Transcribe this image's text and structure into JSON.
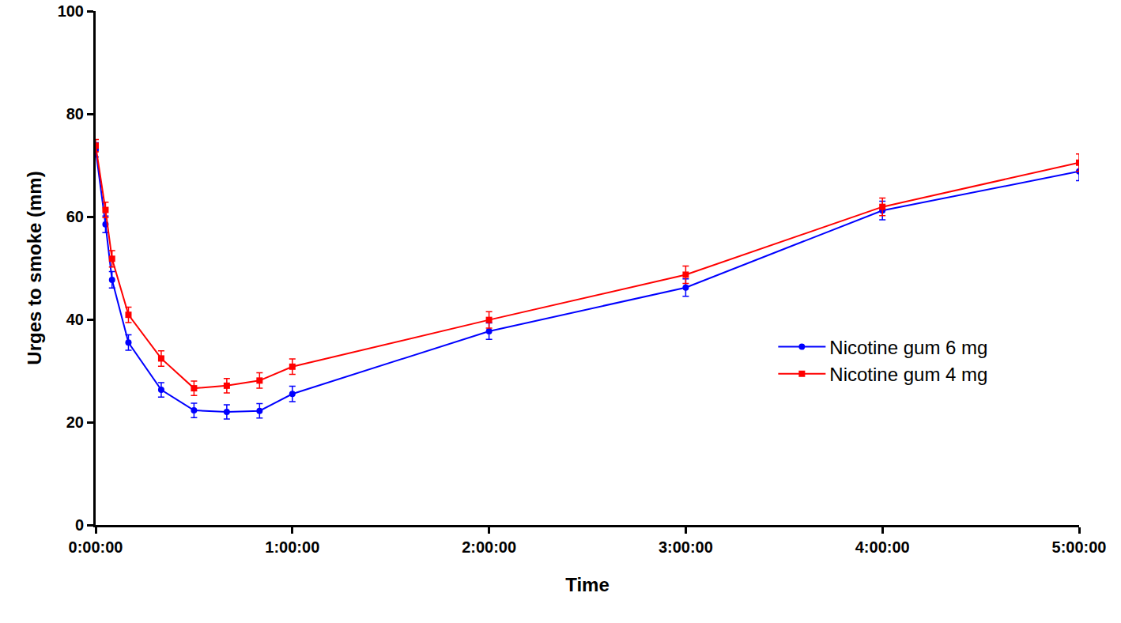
{
  "chart_data": {
    "type": "line",
    "x_label": "Time",
    "y_label": "Urges to smoke (mm)",
    "x": [
      0,
      3,
      5,
      10,
      20,
      30,
      40,
      50,
      60,
      120,
      180,
      240,
      300
    ],
    "series": [
      {
        "name": "Nicotine gum 6 mg",
        "color": "#0000ff",
        "marker": "circle",
        "values": [
          73.0,
          58.5,
          47.7,
          35.5,
          26.3,
          22.3,
          22.0,
          22.2,
          25.5,
          37.7,
          46.2,
          61.2,
          68.8
        ],
        "errors": [
          1.4,
          1.6,
          1.6,
          1.5,
          1.4,
          1.4,
          1.4,
          1.4,
          1.5,
          1.6,
          1.7,
          1.8,
          1.8
        ]
      },
      {
        "name": "Nicotine gum 4 mg",
        "color": "#ff0000",
        "marker": "square",
        "values": [
          73.8,
          61.3,
          51.8,
          40.9,
          32.4,
          26.6,
          27.1,
          28.1,
          30.8,
          39.9,
          48.7,
          61.9,
          70.5
        ],
        "errors": [
          1.2,
          1.5,
          1.6,
          1.5,
          1.5,
          1.4,
          1.4,
          1.5,
          1.5,
          1.6,
          1.7,
          1.7,
          1.7
        ]
      }
    ],
    "xlim": [
      0,
      300
    ],
    "xticks": [
      {
        "value": 0,
        "label": "0:00:00"
      },
      {
        "value": 60,
        "label": "1:00:00"
      },
      {
        "value": 120,
        "label": "2:00:00"
      },
      {
        "value": 180,
        "label": "3:00:00"
      },
      {
        "value": 240,
        "label": "4:00:00"
      },
      {
        "value": 300,
        "label": "5:00:00"
      }
    ],
    "ylim": [
      0,
      100
    ],
    "yticks": [
      0,
      20,
      40,
      60,
      80,
      100
    ],
    "grid": false,
    "legend": "right"
  }
}
